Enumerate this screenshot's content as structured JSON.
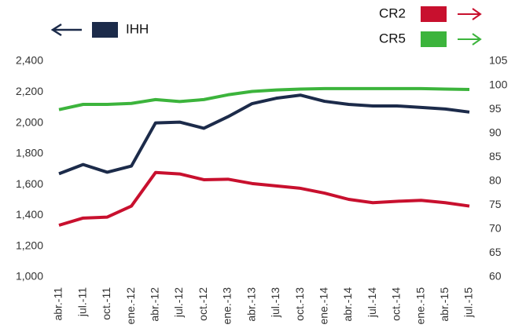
{
  "chart_data": {
    "type": "line",
    "categories": [
      "abr.-11",
      "jul.-11",
      "oct.-11",
      "ene.-12",
      "abr.-12",
      "jul.-12",
      "oct.-12",
      "ene.-13",
      "abr.-13",
      "jul.-13",
      "oct.-13",
      "ene.-14",
      "abr.-14",
      "jul.-14",
      "oct.-14",
      "ene.-15",
      "abr.-15",
      "jul.-15"
    ],
    "series": [
      {
        "name": "IHH",
        "color": "#1c2b4a",
        "axis": "y",
        "values": [
          1670,
          1730,
          1680,
          1720,
          2000,
          2005,
          1965,
          2040,
          2125,
          2160,
          2180,
          2140,
          2120,
          2110,
          2110,
          2100,
          2090,
          2070
        ]
      },
      {
        "name": "CR2",
        "color": "#c8102e",
        "axis": "y2",
        "values": [
          70.8,
          72.3,
          72.5,
          74.8,
          81.8,
          81.5,
          80.3,
          80.4,
          79.5,
          79.0,
          78.5,
          77.5,
          76.2,
          75.5,
          75.8,
          76.0,
          75.5,
          74.8
        ]
      },
      {
        "name": "CR5",
        "color": "#3cb43c",
        "axis": "y2",
        "values": [
          94.9,
          96.0,
          96.0,
          96.2,
          97.0,
          96.6,
          97.0,
          98.0,
          98.7,
          99.0,
          99.2,
          99.3,
          99.3,
          99.3,
          99.3,
          99.3,
          99.2,
          99.1
        ]
      }
    ],
    "ylim": [
      1000,
      2400
    ],
    "yticks": [
      {
        "value": 1000,
        "label": "1,000"
      },
      {
        "value": 1200,
        "label": "1,200"
      },
      {
        "value": 1400,
        "label": "1,400"
      },
      {
        "value": 1600,
        "label": "1,600"
      },
      {
        "value": 1800,
        "label": "1,800"
      },
      {
        "value": 2000,
        "label": "2,000"
      },
      {
        "value": 2200,
        "label": "2,200"
      },
      {
        "value": 2400,
        "label": "2,400"
      }
    ],
    "y2lim": [
      60,
      105
    ],
    "y2ticks": [
      60,
      65,
      70,
      75,
      80,
      85,
      90,
      95,
      100,
      105
    ],
    "grid": false
  }
}
